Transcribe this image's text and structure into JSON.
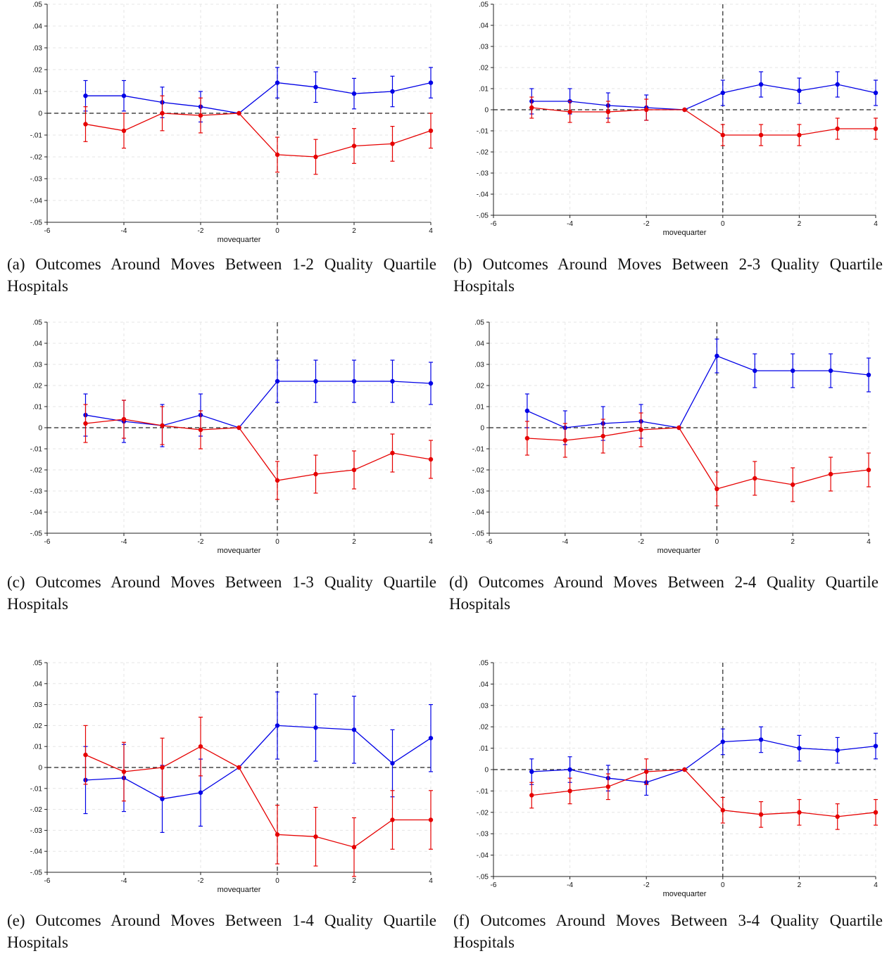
{
  "panels": [
    {
      "caption": "(a) Outcomes Around Moves Between 1-2 Quality Quartile Hospitals",
      "chart_data": {
        "type": "line",
        "xlabel": "movequarter",
        "xlim": [
          -6,
          4
        ],
        "ylim": [
          -0.05,
          0.05
        ],
        "x_ticks": [
          "-6",
          "-4",
          "-2",
          "0",
          "2",
          "4"
        ],
        "y_ticks": [
          ".05",
          ".04",
          ".03",
          ".02",
          ".01",
          "0",
          "-.01",
          "-.02",
          "-.03",
          "-.04",
          "-.05"
        ],
        "x": [
          -5,
          -4,
          -3,
          -2,
          -1,
          0,
          1,
          2,
          3,
          4
        ],
        "series": [
          {
            "color": "#0000e6",
            "values": [
              0.008,
              0.008,
              0.005,
              0.003,
              0,
              0.014,
              0.012,
              0.009,
              0.01,
              0.014
            ],
            "lower": [
              0.001,
              0.001,
              -0.002,
              -0.004,
              0,
              0.007,
              0.005,
              0.002,
              0.003,
              0.007
            ],
            "upper": [
              0.015,
              0.015,
              0.012,
              0.01,
              0,
              0.021,
              0.019,
              0.016,
              0.017,
              0.021
            ]
          },
          {
            "color": "#e60000",
            "values": [
              -0.005,
              -0.008,
              0,
              -0.001,
              0,
              -0.019,
              -0.02,
              -0.015,
              -0.014,
              -0.008
            ],
            "lower": [
              -0.013,
              -0.016,
              -0.008,
              -0.009,
              0,
              -0.027,
              -0.028,
              -0.023,
              -0.022,
              -0.016
            ],
            "upper": [
              0.003,
              0,
              0.008,
              0.007,
              0,
              -0.011,
              -0.012,
              -0.007,
              -0.006,
              0
            ]
          }
        ]
      }
    },
    {
      "caption": "(b) Outcomes Around Moves Between 2-3 Quality Quartile Hospitals",
      "chart_data": {
        "type": "line",
        "xlabel": "movequarter",
        "xlim": [
          -6,
          4
        ],
        "ylim": [
          -0.05,
          0.05
        ],
        "x_ticks": [
          "-6",
          "-4",
          "-2",
          "0",
          "2",
          "4"
        ],
        "y_ticks": [
          ".05",
          ".04",
          ".03",
          ".02",
          ".01",
          "0",
          "-.01",
          "-.02",
          "-.03",
          "-.04",
          "-.05"
        ],
        "x": [
          -5,
          -4,
          -3,
          -2,
          -1,
          0,
          1,
          2,
          3,
          4
        ],
        "series": [
          {
            "color": "#0000e6",
            "values": [
              0.004,
              0.004,
              0.002,
              0.001,
              0,
              0.008,
              0.012,
              0.009,
              0.012,
              0.008
            ],
            "lower": [
              -0.002,
              -0.002,
              -0.004,
              -0.005,
              0,
              0.002,
              0.006,
              0.003,
              0.006,
              0.002
            ],
            "upper": [
              0.01,
              0.01,
              0.008,
              0.007,
              0,
              0.014,
              0.018,
              0.015,
              0.018,
              0.014
            ]
          },
          {
            "color": "#e60000",
            "values": [
              0.001,
              -0.001,
              -0.001,
              0,
              0,
              -0.012,
              -0.012,
              -0.012,
              -0.009,
              -0.009
            ],
            "lower": [
              -0.004,
              -0.006,
              -0.006,
              -0.005,
              0,
              -0.017,
              -0.017,
              -0.017,
              -0.014,
              -0.014
            ],
            "upper": [
              0.006,
              0.004,
              0.004,
              0.005,
              0,
              -0.007,
              -0.007,
              -0.007,
              -0.004,
              -0.004
            ]
          }
        ]
      }
    },
    {
      "caption": "(c) Outcomes Around Moves Between 1-3 Quality Quartile Hospitals",
      "chart_data": {
        "type": "line",
        "xlabel": "movequarter",
        "xlim": [
          -6,
          4
        ],
        "ylim": [
          -0.05,
          0.05
        ],
        "x_ticks": [
          "-6",
          "-4",
          "-2",
          "0",
          "2",
          "4"
        ],
        "y_ticks": [
          ".05",
          ".04",
          ".03",
          ".02",
          ".01",
          "0",
          "-.01",
          "-.02",
          "-.03",
          "-.04",
          "-.05"
        ],
        "x": [
          -5,
          -4,
          -3,
          -2,
          -1,
          0,
          1,
          2,
          3,
          4
        ],
        "series": [
          {
            "color": "#0000e6",
            "values": [
              0.006,
              0.003,
              0.001,
              0.006,
              0,
              0.022,
              0.022,
              0.022,
              0.022,
              0.021
            ],
            "lower": [
              -0.004,
              -0.007,
              -0.009,
              -0.004,
              0,
              0.012,
              0.012,
              0.012,
              0.012,
              0.011
            ],
            "upper": [
              0.016,
              0.013,
              0.011,
              0.016,
              0,
              0.032,
              0.032,
              0.032,
              0.032,
              0.031
            ]
          },
          {
            "color": "#e60000",
            "values": [
              0.002,
              0.004,
              0.001,
              -0.001,
              0,
              -0.025,
              -0.022,
              -0.02,
              -0.012,
              -0.015
            ],
            "lower": [
              -0.007,
              -0.005,
              -0.008,
              -0.01,
              0,
              -0.034,
              -0.031,
              -0.029,
              -0.021,
              -0.024
            ],
            "upper": [
              0.011,
              0.013,
              0.01,
              0.008,
              0,
              -0.016,
              -0.013,
              -0.011,
              -0.003,
              -0.006
            ]
          }
        ]
      }
    },
    {
      "caption": "(d) Outcomes Around Moves Between 2-4 Quality Quartile Hospitals",
      "chart_data": {
        "type": "line",
        "xlabel": "movequarter",
        "xlim": [
          -6,
          4
        ],
        "ylim": [
          -0.05,
          0.05
        ],
        "x_ticks": [
          "-6",
          "-4",
          "-2",
          "0",
          "2",
          "4"
        ],
        "y_ticks": [
          ".05",
          ".04",
          ".03",
          ".02",
          ".01",
          "0",
          "-.01",
          "-.02",
          "-.03",
          "-.04",
          "-.05"
        ],
        "x": [
          -5,
          -4,
          -3,
          -2,
          -1,
          0,
          1,
          2,
          3,
          4
        ],
        "series": [
          {
            "color": "#0000e6",
            "values": [
              0.008,
              0,
              0.002,
              0.003,
              0,
              0.034,
              0.027,
              0.027,
              0.027,
              0.025
            ],
            "lower": [
              0,
              -0.008,
              -0.006,
              -0.005,
              0,
              0.026,
              0.019,
              0.019,
              0.019,
              0.017
            ],
            "upper": [
              0.016,
              0.008,
              0.01,
              0.011,
              0,
              0.042,
              0.035,
              0.035,
              0.035,
              0.033
            ]
          },
          {
            "color": "#e60000",
            "values": [
              -0.005,
              -0.006,
              -0.004,
              -0.001,
              0,
              -0.029,
              -0.024,
              -0.027,
              -0.022,
              -0.02
            ],
            "lower": [
              -0.013,
              -0.014,
              -0.012,
              -0.009,
              0,
              -0.037,
              -0.032,
              -0.035,
              -0.03,
              -0.028
            ],
            "upper": [
              0.003,
              0.002,
              0.004,
              0.007,
              0,
              -0.021,
              -0.016,
              -0.019,
              -0.014,
              -0.012
            ]
          }
        ]
      }
    },
    {
      "caption": "(e) Outcomes Around Moves Between 1-4 Quality Quartile Hospitals",
      "chart_data": {
        "type": "line",
        "xlabel": "movequarter",
        "xlim": [
          -6,
          4
        ],
        "ylim": [
          -0.05,
          0.05
        ],
        "x_ticks": [
          "-6",
          "-4",
          "-2",
          "0",
          "2",
          "4"
        ],
        "y_ticks": [
          ".05",
          ".04",
          ".03",
          ".02",
          ".01",
          "0",
          "-.01",
          "-.02",
          "-.03",
          "-.04",
          "-.05"
        ],
        "x": [
          -5,
          -4,
          -3,
          -2,
          -1,
          0,
          1,
          2,
          3,
          4
        ],
        "series": [
          {
            "color": "#0000e6",
            "values": [
              -0.006,
              -0.005,
              -0.015,
              -0.012,
              0,
              0.02,
              0.019,
              0.018,
              0.002,
              0.014
            ],
            "lower": [
              -0.022,
              -0.021,
              -0.031,
              -0.028,
              0,
              0.004,
              0.003,
              0.002,
              -0.014,
              -0.002
            ],
            "upper": [
              0.01,
              0.011,
              0.001,
              0.004,
              0,
              0.036,
              0.035,
              0.034,
              0.018,
              0.03
            ]
          },
          {
            "color": "#e60000",
            "values": [
              0.006,
              -0.002,
              0,
              0.01,
              0,
              -0.032,
              -0.033,
              -0.038,
              -0.025,
              -0.025
            ],
            "lower": [
              -0.008,
              -0.016,
              -0.014,
              -0.004,
              0,
              -0.046,
              -0.047,
              -0.052,
              -0.039,
              -0.039
            ],
            "upper": [
              0.02,
              0.012,
              0.014,
              0.024,
              0,
              -0.018,
              -0.019,
              -0.024,
              -0.011,
              -0.011
            ]
          }
        ]
      }
    },
    {
      "caption": "(f) Outcomes Around Moves Between 3-4 Quality Quartile Hospitals",
      "chart_data": {
        "type": "line",
        "xlabel": "movequarter",
        "xlim": [
          -6,
          4
        ],
        "ylim": [
          -0.05,
          0.05
        ],
        "x_ticks": [
          "-6",
          "-4",
          "-2",
          "0",
          "2",
          "4"
        ],
        "y_ticks": [
          ".05",
          ".04",
          ".03",
          ".02",
          ".01",
          "0",
          "-.01",
          "-.02",
          "-.03",
          "-.04",
          "-.05"
        ],
        "x": [
          -5,
          -4,
          -3,
          -2,
          -1,
          0,
          1,
          2,
          3,
          4
        ],
        "series": [
          {
            "color": "#0000e6",
            "values": [
              -0.001,
              0,
              -0.004,
              -0.006,
              0,
              0.013,
              0.014,
              0.01,
              0.009,
              0.011
            ],
            "lower": [
              -0.007,
              -0.006,
              -0.01,
              -0.012,
              0,
              0.007,
              0.008,
              0.004,
              0.003,
              0.005
            ],
            "upper": [
              0.005,
              0.006,
              0.002,
              0,
              0,
              0.019,
              0.02,
              0.016,
              0.015,
              0.017
            ]
          },
          {
            "color": "#e60000",
            "values": [
              -0.012,
              -0.01,
              -0.008,
              -0.001,
              0,
              -0.019,
              -0.021,
              -0.02,
              -0.022,
              -0.02
            ],
            "lower": [
              -0.018,
              -0.016,
              -0.014,
              -0.007,
              0,
              -0.025,
              -0.027,
              -0.026,
              -0.028,
              -0.026
            ],
            "upper": [
              -0.006,
              -0.004,
              -0.002,
              0.005,
              0,
              -0.013,
              -0.015,
              -0.014,
              -0.016,
              -0.014
            ]
          }
        ]
      }
    }
  ]
}
